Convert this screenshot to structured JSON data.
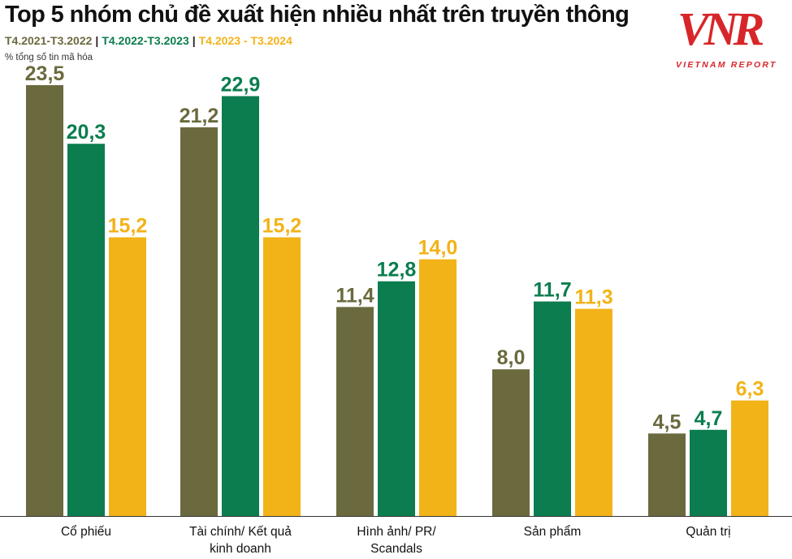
{
  "title": "Top 5 nhóm chủ đề xuất hiện nhiều nhất trên truyền thông",
  "legend": [
    {
      "label": "T4.2021-T3.2022",
      "color": "#6b6a3e"
    },
    {
      "label": "T4.2022-T3.2023",
      "color": "#0b7d4e"
    },
    {
      "label": "T4.2023 - T3.2024",
      "color": "#f2b318"
    }
  ],
  "unit_label": "% tổng số tin mã hóa",
  "logo": {
    "mark": "VNR",
    "sub": "VIETNAM REPORT"
  },
  "chart_data": {
    "type": "bar",
    "title": "Top 5 nhóm chủ đề xuất hiện nhiều nhất trên truyền thông",
    "ylabel": "% tổng số tin mã hóa",
    "categories": [
      [
        "Cổ phiếu"
      ],
      [
        "Tài chính/ Kết quả",
        "kinh doanh"
      ],
      [
        "Hình ảnh/ PR/",
        "Scandals"
      ],
      [
        "Sản phẩm"
      ],
      [
        "Quản trị"
      ]
    ],
    "series": [
      {
        "name": "T4.2021-T3.2022",
        "color": "#6b6a3e",
        "values": [
          23.5,
          21.2,
          11.4,
          8.0,
          4.5
        ],
        "labels": [
          "23,5",
          "21,2",
          "11,4",
          "8,0",
          "4,5"
        ]
      },
      {
        "name": "T4.2022-T3.2023",
        "color": "#0b7d4e",
        "values": [
          20.3,
          22.9,
          12.8,
          11.7,
          4.7
        ],
        "labels": [
          "20,3",
          "22,9",
          "12,8",
          "11,7",
          "4,7"
        ]
      },
      {
        "name": "T4.2023 - T3.2024",
        "color": "#f2b318",
        "values": [
          15.2,
          15.2,
          14.0,
          11.3,
          6.3
        ],
        "labels": [
          "15,2",
          "15,2",
          "14,0",
          "11,3",
          "6,3"
        ]
      }
    ],
    "ylim": [
      0,
      25
    ],
    "grid": false,
    "legend_position": "top-left"
  }
}
